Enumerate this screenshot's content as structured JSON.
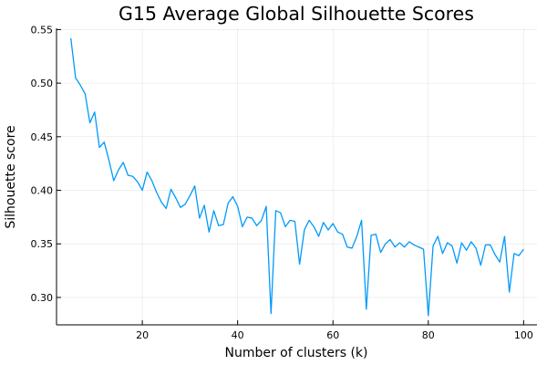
{
  "chart_data": {
    "type": "line",
    "title": "G15 Average Global Silhouette Scores",
    "xlabel": "Number of clusters (k)",
    "ylabel": "Silhouette score",
    "xlim": [
      2.0,
      102.8
    ],
    "ylim": [
      0.2744,
      0.5512
    ],
    "xticks": [
      20,
      40,
      60,
      80,
      100
    ],
    "yticks": [
      0.3,
      0.35,
      0.4,
      0.45,
      0.5,
      0.55
    ],
    "ytick_labels": [
      "0.30",
      "0.35",
      "0.40",
      "0.45",
      "0.50",
      "0.55"
    ],
    "grid": true,
    "legend": "none",
    "series_color": "#009af9",
    "series": [
      {
        "x": [
          5,
          6,
          7,
          8,
          9,
          10,
          11,
          12,
          13,
          14,
          15,
          16,
          17,
          18,
          19,
          20,
          21,
          22,
          23,
          24,
          25,
          26,
          27,
          28,
          29,
          30,
          31,
          32,
          33,
          34,
          35,
          36,
          37,
          38,
          39,
          40,
          41,
          42,
          43,
          44,
          45,
          46,
          47,
          48,
          49,
          50,
          51,
          52,
          53,
          54,
          55,
          56,
          57,
          58,
          59,
          60,
          61,
          62,
          63,
          64,
          65,
          66,
          67,
          68,
          69,
          70,
          71,
          72,
          73,
          74,
          75,
          76,
          77,
          78,
          79,
          80,
          81,
          82,
          83,
          84,
          85,
          86,
          87,
          88,
          89,
          90,
          91,
          92,
          93,
          94,
          95,
          96,
          97,
          98,
          99,
          100
        ],
        "values": [
          0.542,
          0.505,
          0.498,
          0.49,
          0.463,
          0.473,
          0.44,
          0.445,
          0.428,
          0.409,
          0.419,
          0.426,
          0.414,
          0.413,
          0.408,
          0.4,
          0.417,
          0.409,
          0.398,
          0.389,
          0.383,
          0.401,
          0.393,
          0.384,
          0.387,
          0.395,
          0.404,
          0.374,
          0.386,
          0.361,
          0.381,
          0.367,
          0.368,
          0.388,
          0.394,
          0.385,
          0.366,
          0.375,
          0.374,
          0.367,
          0.372,
          0.385,
          0.285,
          0.381,
          0.379,
          0.366,
          0.372,
          0.371,
          0.331,
          0.363,
          0.372,
          0.366,
          0.357,
          0.37,
          0.363,
          0.369,
          0.361,
          0.359,
          0.347,
          0.346,
          0.357,
          0.372,
          0.289,
          0.358,
          0.359,
          0.342,
          0.35,
          0.354,
          0.347,
          0.351,
          0.347,
          0.352,
          0.349,
          0.347,
          0.345,
          0.283,
          0.348,
          0.357,
          0.341,
          0.351,
          0.348,
          0.332,
          0.351,
          0.344,
          0.352,
          0.346,
          0.33,
          0.349,
          0.349,
          0.34,
          0.333,
          0.357,
          0.305,
          0.341,
          0.339,
          0.345
        ]
      }
    ]
  }
}
